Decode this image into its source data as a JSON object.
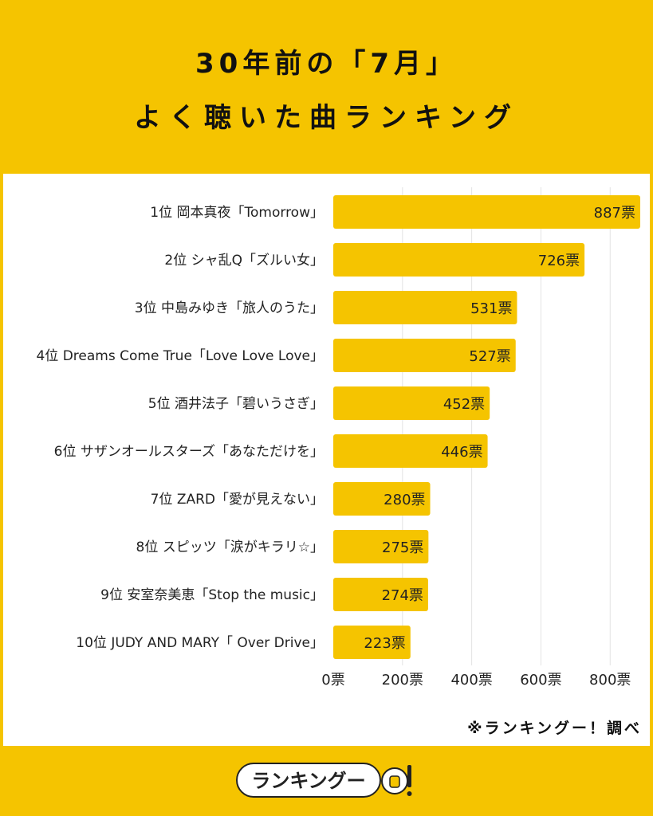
{
  "header": {
    "line1": "30年前の「7月」",
    "line2": "よく聴いた曲ランキング"
  },
  "chart_data": {
    "type": "bar",
    "orientation": "horizontal",
    "categories": [
      "1位 岡本真夜「Tomorrow」",
      "2位 シャ乱Q「ズルい女」",
      "3位 中島みゆき「旅人のうた」",
      "4位 Dreams Come True「Love Love Love」",
      "5位 酒井法子「碧いうさぎ」",
      "6位 サザンオールスターズ「あなただけを」",
      "7位 ZARD「愛が見えない」",
      "8位 スピッツ「涙がキラリ☆」",
      "9位 安室奈美恵「Stop the music」",
      "10位 JUDY AND MARY「 Over Drive」"
    ],
    "values": [
      887,
      726,
      531,
      527,
      452,
      446,
      280,
      275,
      274,
      223
    ],
    "value_labels": [
      "887票",
      "726票",
      "531票",
      "527票",
      "452票",
      "446票",
      "280票",
      "275票",
      "274票",
      "223票"
    ],
    "xlim": [
      0,
      887
    ],
    "ticks": [
      0,
      200,
      400,
      600,
      800
    ],
    "tick_labels": [
      "0票",
      "200票",
      "400票",
      "600票",
      "800票"
    ],
    "bar_color": "#f5c400",
    "grid": true
  },
  "footer": {
    "source": "※ランキングー！調べ",
    "logo_text": "ランキングー"
  },
  "colors": {
    "background": "#f5c400",
    "panel": "#ffffff",
    "bar": "#f5c400"
  }
}
